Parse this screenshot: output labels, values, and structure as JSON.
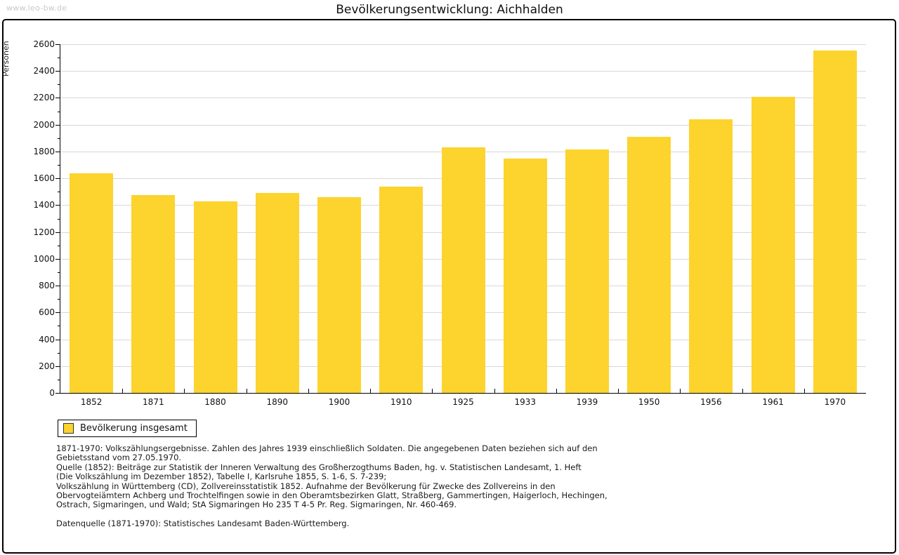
{
  "watermark": "www.leo-bw.de",
  "chart_data": {
    "type": "bar",
    "title": "Bevölkerungsentwicklung: Aichhalden",
    "ylabel": "Personen",
    "xlabel": "",
    "categories": [
      "1852",
      "1871",
      "1880",
      "1890",
      "1900",
      "1910",
      "1925",
      "1933",
      "1939",
      "1950",
      "1956",
      "1961",
      "1970"
    ],
    "values": [
      1640,
      1475,
      1430,
      1490,
      1460,
      1540,
      1830,
      1745,
      1815,
      1910,
      2040,
      2210,
      2555
    ],
    "series_name": "Bevölkerung insgesamt",
    "ylim": [
      0,
      2600
    ],
    "ytick_step": 200,
    "yminor_step": 100,
    "grid": "horizontal",
    "legend_position": "bottom-left"
  },
  "colors": {
    "bar": "#FDD32D",
    "grid": "#D8D8D8",
    "axis": "#000000",
    "watermark": "#C9C9C9",
    "swatch_border": "#333333"
  },
  "footer": {
    "note_lines": [
      "1871-1970: Volkszählungsergebnisse. Zahlen des Jahres 1939 einschließlich Soldaten. Die angegebenen Daten beziehen sich auf den",
      "Gebietsstand vom 27.05.1970.",
      "Quelle (1852): Beiträge zur Statistik der Inneren Verwaltung des Großherzogthums Baden, hg. v. Statistischen Landesamt, 1. Heft",
      "(Die Volkszählung im Dezember 1852), Tabelle I, Karlsruhe 1855, S. 1-6, S. 7-239;",
      "Volkszählung in Württemberg (CD), Zollvereinsstatistik 1852. Aufnahme der Bevölkerung für Zwecke des Zollvereins in den",
      "Obervogteiämtern Achberg und Trochtelfingen sowie in den Oberamtsbezirken Glatt, Straßberg, Gammertingen, Haigerloch, Hechingen,",
      "Ostrach, Sigmaringen, und Wald; StA Sigmaringen Ho 235 T 4-5 Pr. Reg. Sigmaringen, Nr. 460-469."
    ],
    "datasource": "Datenquelle (1871-1970): Statistisches Landesamt Baden-Württemberg."
  }
}
